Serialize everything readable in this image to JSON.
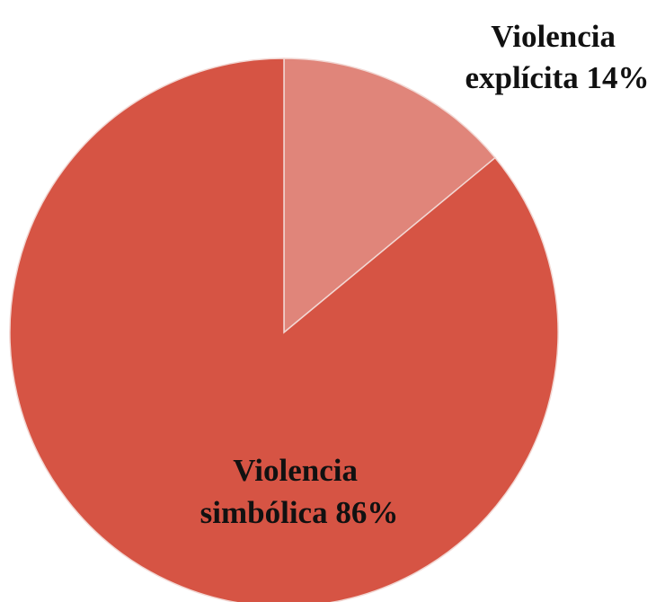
{
  "chart_data": {
    "type": "pie",
    "title": "",
    "start_angle_deg": 0,
    "direction": "clockwise",
    "slices": [
      {
        "label_lines": [
          "Violencia",
          "explícita 14%"
        ],
        "category": "Violencia explícita",
        "value": 14,
        "color": "#e0857a",
        "label_placement": "outside-top-right"
      },
      {
        "label_lines": [
          "Violencia",
          "simbólica 86%"
        ],
        "category": "Violencia simbólica",
        "value": 86,
        "color": "#d65444",
        "label_placement": "inside-bottom"
      }
    ],
    "slice_border_color": "#f2d7d3",
    "legend": "none"
  }
}
